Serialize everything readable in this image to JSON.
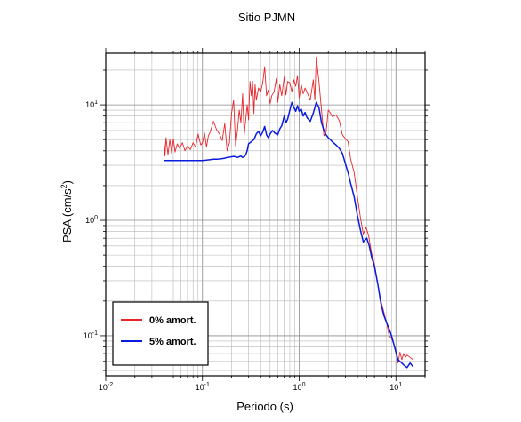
{
  "chart_data": {
    "type": "line",
    "title": "Sitio PJMN",
    "xlabel": "Periodo (s)",
    "ylabel_main": "PSA (cm/s",
    "ylabel_sup": "2",
    "ylabel_close": ")",
    "xscale": "log",
    "yscale": "log",
    "xlim": [
      0.01,
      20
    ],
    "ylim": [
      0.045,
      28
    ],
    "grid": true,
    "legend_position": "bottom-left",
    "x_ticks": [
      {
        "value": 0.01,
        "base": "10",
        "exp": "-2"
      },
      {
        "value": 0.1,
        "base": "10",
        "exp": "-1"
      },
      {
        "value": 1,
        "base": "10",
        "exp": "0"
      },
      {
        "value": 10,
        "base": "10",
        "exp": "1"
      }
    ],
    "y_ticks": [
      {
        "value": 0.1,
        "base": "10",
        "exp": "-1"
      },
      {
        "value": 1,
        "base": "10",
        "exp": "0"
      },
      {
        "value": 10,
        "base": "10",
        "exp": "1"
      }
    ],
    "series": [
      {
        "name": "0% amort.",
        "color": "#e8252a",
        "points": [
          [
            0.04,
            4.9
          ],
          [
            0.041,
            3.6
          ],
          [
            0.042,
            5.2
          ],
          [
            0.044,
            3.7
          ],
          [
            0.046,
            5.0
          ],
          [
            0.048,
            3.8
          ],
          [
            0.05,
            5.1
          ],
          [
            0.052,
            3.9
          ],
          [
            0.055,
            4.6
          ],
          [
            0.058,
            4.2
          ],
          [
            0.062,
            4.7
          ],
          [
            0.066,
            4.0
          ],
          [
            0.07,
            4.4
          ],
          [
            0.075,
            4.1
          ],
          [
            0.08,
            4.7
          ],
          [
            0.085,
            4.3
          ],
          [
            0.09,
            5.6
          ],
          [
            0.096,
            4.5
          ],
          [
            0.1,
            4.7
          ],
          [
            0.105,
            5.7
          ],
          [
            0.11,
            4.3
          ],
          [
            0.115,
            5.4
          ],
          [
            0.12,
            5.8
          ],
          [
            0.13,
            7.2
          ],
          [
            0.14,
            6.1
          ],
          [
            0.15,
            5.6
          ],
          [
            0.16,
            4.9
          ],
          [
            0.17,
            6.9
          ],
          [
            0.18,
            4.0
          ],
          [
            0.19,
            4.7
          ],
          [
            0.2,
            8.5
          ],
          [
            0.21,
            11.0
          ],
          [
            0.22,
            4.4
          ],
          [
            0.23,
            6.0
          ],
          [
            0.24,
            9.0
          ],
          [
            0.25,
            7.0
          ],
          [
            0.26,
            12.5
          ],
          [
            0.27,
            5.5
          ],
          [
            0.28,
            7.5
          ],
          [
            0.29,
            10.0
          ],
          [
            0.3,
            7.4
          ],
          [
            0.31,
            16.0
          ],
          [
            0.32,
            12.0
          ],
          [
            0.33,
            16.0
          ],
          [
            0.34,
            8.4
          ],
          [
            0.35,
            15.0
          ],
          [
            0.36,
            11.0
          ],
          [
            0.38,
            14.0
          ],
          [
            0.4,
            13.0
          ],
          [
            0.42,
            15.5
          ],
          [
            0.44,
            21.5
          ],
          [
            0.46,
            12.0
          ],
          [
            0.48,
            13.5
          ],
          [
            0.5,
            10.2
          ],
          [
            0.52,
            12.0
          ],
          [
            0.55,
            13.0
          ],
          [
            0.58,
            17.0
          ],
          [
            0.6,
            10.5
          ],
          [
            0.63,
            15.0
          ],
          [
            0.66,
            12.0
          ],
          [
            0.7,
            17.5
          ],
          [
            0.73,
            12.2
          ],
          [
            0.76,
            16.0
          ],
          [
            0.8,
            15.5
          ],
          [
            0.84,
            13.0
          ],
          [
            0.88,
            16.5
          ],
          [
            0.92,
            14.5
          ],
          [
            0.96,
            18.0
          ],
          [
            1.0,
            11.5
          ],
          [
            1.05,
            15.0
          ],
          [
            1.1,
            12.5
          ],
          [
            1.15,
            14.0
          ],
          [
            1.2,
            13.0
          ],
          [
            1.3,
            11.0
          ],
          [
            1.4,
            16.5
          ],
          [
            1.45,
            11.0
          ],
          [
            1.5,
            26.0
          ],
          [
            1.6,
            16.0
          ],
          [
            1.7,
            9.0
          ],
          [
            1.8,
            5.4
          ],
          [
            1.9,
            5.9
          ],
          [
            2.0,
            9.0
          ],
          [
            2.1,
            8.5
          ],
          [
            2.2,
            7.9
          ],
          [
            2.4,
            8.2
          ],
          [
            2.6,
            7.3
          ],
          [
            2.8,
            5.5
          ],
          [
            3.0,
            5.1
          ],
          [
            3.2,
            4.8
          ],
          [
            3.4,
            3.4
          ],
          [
            3.7,
            2.6
          ],
          [
            4.0,
            1.6
          ],
          [
            4.3,
            1.05
          ],
          [
            4.6,
            0.76
          ],
          [
            4.9,
            0.87
          ],
          [
            5.2,
            0.75
          ],
          [
            5.6,
            0.52
          ],
          [
            6.0,
            0.42
          ],
          [
            6.5,
            0.28
          ],
          [
            7.0,
            0.2
          ],
          [
            7.5,
            0.16
          ],
          [
            8.0,
            0.13
          ],
          [
            8.5,
            0.1
          ],
          [
            9.0,
            0.095
          ],
          [
            9.5,
            0.085
          ],
          [
            10.0,
            0.075
          ],
          [
            10.5,
            0.058
          ],
          [
            11.0,
            0.072
          ],
          [
            11.5,
            0.062
          ],
          [
            12.0,
            0.07
          ],
          [
            12.5,
            0.065
          ],
          [
            13.0,
            0.068
          ],
          [
            14.0,
            0.065
          ],
          [
            15.0,
            0.062
          ]
        ]
      },
      {
        "name": "5% amort.",
        "color": "#0a1be0",
        "points": [
          [
            0.04,
            3.3
          ],
          [
            0.05,
            3.3
          ],
          [
            0.06,
            3.3
          ],
          [
            0.07,
            3.3
          ],
          [
            0.08,
            3.3
          ],
          [
            0.09,
            3.3
          ],
          [
            0.1,
            3.3
          ],
          [
            0.11,
            3.32
          ],
          [
            0.12,
            3.35
          ],
          [
            0.13,
            3.38
          ],
          [
            0.14,
            3.38
          ],
          [
            0.15,
            3.4
          ],
          [
            0.16,
            3.42
          ],
          [
            0.17,
            3.45
          ],
          [
            0.18,
            3.5
          ],
          [
            0.19,
            3.52
          ],
          [
            0.2,
            3.55
          ],
          [
            0.21,
            3.58
          ],
          [
            0.22,
            3.55
          ],
          [
            0.23,
            3.5
          ],
          [
            0.24,
            3.55
          ],
          [
            0.25,
            3.6
          ],
          [
            0.26,
            3.5
          ],
          [
            0.27,
            3.55
          ],
          [
            0.28,
            3.7
          ],
          [
            0.29,
            4.0
          ],
          [
            0.3,
            4.6
          ],
          [
            0.32,
            4.8
          ],
          [
            0.34,
            5.0
          ],
          [
            0.36,
            5.6
          ],
          [
            0.38,
            5.9
          ],
          [
            0.4,
            5.4
          ],
          [
            0.42,
            5.8
          ],
          [
            0.44,
            6.5
          ],
          [
            0.46,
            5.5
          ],
          [
            0.48,
            5.2
          ],
          [
            0.5,
            5.6
          ],
          [
            0.53,
            6.0
          ],
          [
            0.56,
            5.7
          ],
          [
            0.6,
            5.5
          ],
          [
            0.63,
            6.2
          ],
          [
            0.66,
            6.6
          ],
          [
            0.7,
            8.0
          ],
          [
            0.73,
            7.0
          ],
          [
            0.76,
            7.5
          ],
          [
            0.8,
            9.0
          ],
          [
            0.84,
            10.5
          ],
          [
            0.88,
            9.5
          ],
          [
            0.92,
            8.8
          ],
          [
            0.96,
            9.8
          ],
          [
            1.0,
            8.8
          ],
          [
            1.05,
            9.2
          ],
          [
            1.1,
            8.0
          ],
          [
            1.15,
            8.6
          ],
          [
            1.2,
            7.8
          ],
          [
            1.3,
            7.2
          ],
          [
            1.4,
            8.5
          ],
          [
            1.5,
            10.5
          ],
          [
            1.6,
            9.5
          ],
          [
            1.7,
            7.0
          ],
          [
            1.8,
            6.0
          ],
          [
            1.9,
            5.5
          ],
          [
            2.0,
            5.2
          ],
          [
            2.2,
            4.8
          ],
          [
            2.4,
            4.5
          ],
          [
            2.6,
            4.2
          ],
          [
            2.8,
            3.8
          ],
          [
            3.0,
            3.1
          ],
          [
            3.2,
            2.6
          ],
          [
            3.4,
            2.1
          ],
          [
            3.7,
            1.6
          ],
          [
            4.0,
            1.1
          ],
          [
            4.3,
            0.82
          ],
          [
            4.6,
            0.65
          ],
          [
            5.0,
            0.7
          ],
          [
            5.3,
            0.6
          ],
          [
            5.6,
            0.48
          ],
          [
            6.0,
            0.4
          ],
          [
            6.5,
            0.28
          ],
          [
            7.0,
            0.19
          ],
          [
            7.5,
            0.15
          ],
          [
            8.0,
            0.13
          ],
          [
            8.5,
            0.115
          ],
          [
            9.0,
            0.1
          ],
          [
            9.5,
            0.085
          ],
          [
            10.0,
            0.072
          ],
          [
            10.5,
            0.062
          ],
          [
            11.0,
            0.06
          ],
          [
            11.5,
            0.058
          ],
          [
            12.0,
            0.056
          ],
          [
            13.0,
            0.053
          ],
          [
            14.0,
            0.058
          ],
          [
            15.0,
            0.054
          ]
        ]
      }
    ]
  }
}
